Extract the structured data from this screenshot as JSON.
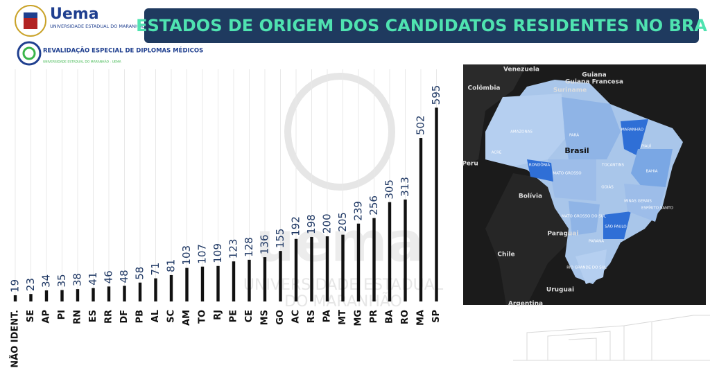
{
  "header": {
    "logo_name": "Uema",
    "logo_subtitle": "UNIVERSIDADE ESTADUAL DO MARANHÃO",
    "program": "REVALIDAÇÃO ESPECIAL DE DIPLOMAS MÉDICOS",
    "program_subtitle": "UNIVERSIDADE ESTADUAL DO MARANHÃO - UEMA"
  },
  "chart_data": {
    "type": "bar",
    "title": "ESTADOS DE ORIGEM DOS CANDIDATOS RESIDENTES NO BRA",
    "color": "#111111",
    "categories": [
      "NÃO IDENT.",
      "SE",
      "AP",
      "PI",
      "RN",
      "ES",
      "RR",
      "DF",
      "PB",
      "AL",
      "SC",
      "AM",
      "TO",
      "RJ",
      "PE",
      "CE",
      "MS",
      "GO",
      "AC",
      "RS",
      "PA",
      "MT",
      "MG",
      "PR",
      "BA",
      "RO",
      "MA",
      "SP"
    ],
    "values": [
      19,
      23,
      34,
      35,
      38,
      41,
      46,
      48,
      58,
      71,
      81,
      103,
      107,
      109,
      123,
      128,
      136,
      155,
      192,
      198,
      200,
      205,
      239,
      256,
      305,
      313,
      502,
      595
    ]
  },
  "watermark": {
    "brand": "uema",
    "line1": "UNIVERSIDADE ESTADUAL",
    "line2": "DO MARANHÃO"
  },
  "map": {
    "countries": [
      "Venezuela",
      "Guiana",
      "Guiana Francesa",
      "Suriname",
      "Colômbia",
      "Brasil",
      "Peru",
      "Bolívia",
      "Paraguai",
      "Chile",
      "Uruguai",
      "Argentina"
    ],
    "states": [
      "AMAZONAS",
      "PARÁ",
      "MARANHÃO",
      "PIAUÍ",
      "BAHIA",
      "ACRE",
      "RONDÔNIA",
      "MATO GROSSO",
      "TOCANTINS",
      "GOIÁS",
      "MINAS GERAIS",
      "MATO GROSSO DO SUL",
      "SÃO PAULO",
      "PARANÁ",
      "RIO GRANDE DO SUL",
      "ESPÍRITO SANTO"
    ]
  }
}
